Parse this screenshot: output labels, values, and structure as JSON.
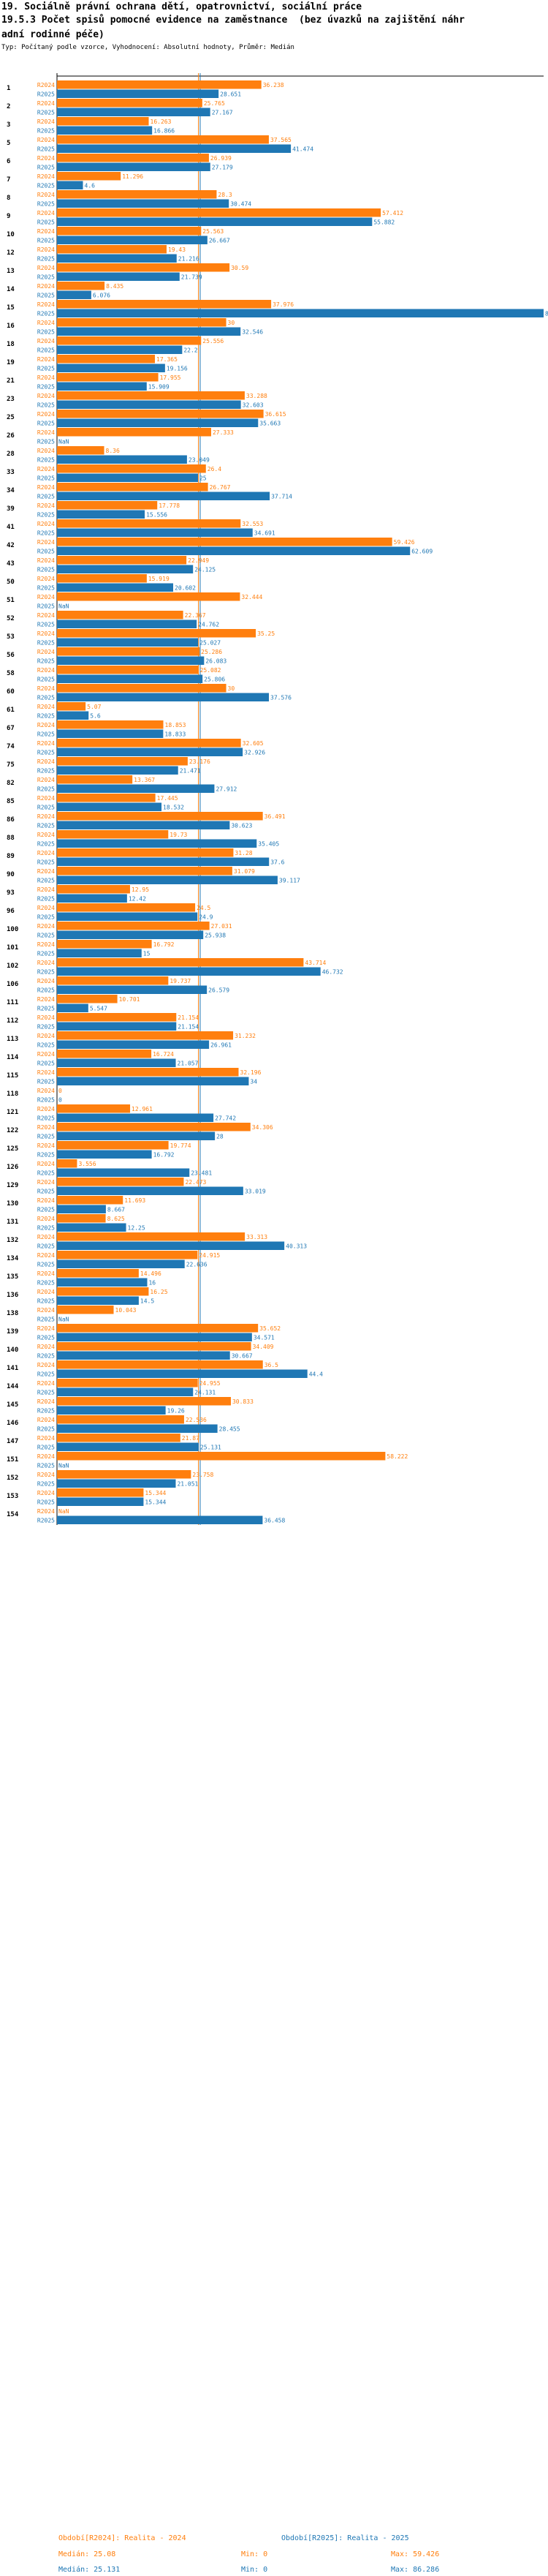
{
  "header": {
    "line1": "19. Sociálně právní ochrana dětí, opatrovnictví, sociální práce",
    "line2": "19.5.3 Počet spisů pomocné evidence na zaměstnance  (bez úvazků na zajištění náhr",
    "line3": "adní rodinné péče)",
    "line4": "Typ: Počítaný podle vzorce, Vyhodnocení: Absolutní hodnoty, Průměr: Medián"
  },
  "colors": {
    "orange": "#ff7f0e",
    "blue": "#1f77b4"
  },
  "chart_data": {
    "type": "bar",
    "orientation": "horizontal",
    "xlim": [
      0,
      86.286
    ],
    "series": [
      {
        "name": "R2024",
        "label": "R2024"
      },
      {
        "name": "R2025",
        "label": "R2025"
      }
    ],
    "groups": [
      {
        "id": "1",
        "v": [
          "36.238",
          "28.651"
        ]
      },
      {
        "id": "2",
        "v": [
          "25.765",
          "27.167"
        ]
      },
      {
        "id": "3",
        "v": [
          "16.263",
          "16.866"
        ]
      },
      {
        "id": "5",
        "v": [
          "37.565",
          "41.474"
        ]
      },
      {
        "id": "6",
        "v": [
          "26.939",
          "27.179"
        ]
      },
      {
        "id": "7",
        "v": [
          "11.296",
          "4.6"
        ]
      },
      {
        "id": "8",
        "v": [
          "28.3",
          "30.474"
        ]
      },
      {
        "id": "9",
        "v": [
          "57.412",
          "55.882"
        ]
      },
      {
        "id": "10",
        "v": [
          "25.563",
          "26.667"
        ]
      },
      {
        "id": "12",
        "v": [
          "19.43",
          "21.216"
        ]
      },
      {
        "id": "13",
        "v": [
          "30.59",
          "21.739"
        ]
      },
      {
        "id": "14",
        "v": [
          "8.435",
          "6.076"
        ]
      },
      {
        "id": "15",
        "v": [
          "37.976",
          "86.286"
        ]
      },
      {
        "id": "16",
        "v": [
          "30",
          "32.546"
        ]
      },
      {
        "id": "18",
        "v": [
          "25.556",
          "22.2"
        ]
      },
      {
        "id": "19",
        "v": [
          "17.365",
          "19.156"
        ]
      },
      {
        "id": "21",
        "v": [
          "17.955",
          "15.909"
        ]
      },
      {
        "id": "23",
        "v": [
          "33.288",
          "32.603"
        ]
      },
      {
        "id": "25",
        "v": [
          "36.615",
          "35.663"
        ]
      },
      {
        "id": "26",
        "v": [
          "27.333",
          "NaN"
        ]
      },
      {
        "id": "28",
        "v": [
          "8.36",
          "23.049"
        ]
      },
      {
        "id": "33",
        "v": [
          "26.4",
          "25"
        ]
      },
      {
        "id": "34",
        "v": [
          "26.767",
          "37.714"
        ]
      },
      {
        "id": "39",
        "v": [
          "17.778",
          "15.556"
        ]
      },
      {
        "id": "41",
        "v": [
          "32.553",
          "34.691"
        ]
      },
      {
        "id": "42",
        "v": [
          "59.426",
          "62.609"
        ]
      },
      {
        "id": "43",
        "v": [
          "22.949",
          "24.125"
        ]
      },
      {
        "id": "50",
        "v": [
          "15.919",
          "20.602"
        ]
      },
      {
        "id": "51",
        "v": [
          "32.444",
          "NaN"
        ]
      },
      {
        "id": "52",
        "v": [
          "22.367",
          "24.762"
        ]
      },
      {
        "id": "53",
        "v": [
          "35.25",
          "25.027"
        ]
      },
      {
        "id": "56",
        "v": [
          "25.286",
          "26.083"
        ]
      },
      {
        "id": "58",
        "v": [
          "25.082",
          "25.806"
        ]
      },
      {
        "id": "60",
        "v": [
          "30",
          "37.576"
        ]
      },
      {
        "id": "61",
        "v": [
          "5.07",
          "5.6"
        ]
      },
      {
        "id": "67",
        "v": [
          "18.853",
          "18.833"
        ]
      },
      {
        "id": "74",
        "v": [
          "32.605",
          "32.926"
        ]
      },
      {
        "id": "75",
        "v": [
          "23.176",
          "21.471"
        ]
      },
      {
        "id": "82",
        "v": [
          "13.367",
          "27.912"
        ]
      },
      {
        "id": "85",
        "v": [
          "17.445",
          "18.532"
        ]
      },
      {
        "id": "86",
        "v": [
          "36.491",
          "30.623"
        ]
      },
      {
        "id": "88",
        "v": [
          "19.73",
          "35.405"
        ]
      },
      {
        "id": "89",
        "v": [
          "31.28",
          "37.6"
        ]
      },
      {
        "id": "90",
        "v": [
          "31.079",
          "39.117"
        ]
      },
      {
        "id": "93",
        "v": [
          "12.95",
          "12.42"
        ]
      },
      {
        "id": "96",
        "v": [
          "24.5",
          "24.9"
        ]
      },
      {
        "id": "100",
        "v": [
          "27.031",
          "25.938"
        ]
      },
      {
        "id": "101",
        "v": [
          "16.792",
          "15"
        ]
      },
      {
        "id": "102",
        "v": [
          "43.714",
          "46.732"
        ]
      },
      {
        "id": "106",
        "v": [
          "19.737",
          "26.579"
        ]
      },
      {
        "id": "111",
        "v": [
          "10.701",
          "5.547"
        ]
      },
      {
        "id": "112",
        "v": [
          "21.154",
          "21.154"
        ]
      },
      {
        "id": "113",
        "v": [
          "31.232",
          "26.961"
        ]
      },
      {
        "id": "114",
        "v": [
          "16.724",
          "21.057"
        ]
      },
      {
        "id": "115",
        "v": [
          "32.196",
          "34"
        ]
      },
      {
        "id": "118",
        "v": [
          "0",
          "0"
        ]
      },
      {
        "id": "121",
        "v": [
          "12.961",
          "27.742"
        ]
      },
      {
        "id": "122",
        "v": [
          "34.306",
          "28"
        ]
      },
      {
        "id": "125",
        "v": [
          "19.774",
          "16.792"
        ]
      },
      {
        "id": "126",
        "v": [
          "3.556",
          "23.481"
        ]
      },
      {
        "id": "129",
        "v": [
          "22.473",
          "33.019"
        ]
      },
      {
        "id": "130",
        "v": [
          "11.693",
          "8.667"
        ]
      },
      {
        "id": "131",
        "v": [
          "8.625",
          "12.25"
        ]
      },
      {
        "id": "132",
        "v": [
          "33.313",
          "40.313"
        ]
      },
      {
        "id": "134",
        "v": [
          "24.915",
          "22.636"
        ]
      },
      {
        "id": "135",
        "v": [
          "14.496",
          "16"
        ]
      },
      {
        "id": "136",
        "v": [
          "16.25",
          "14.5"
        ]
      },
      {
        "id": "138",
        "v": [
          "10.043",
          "NaN"
        ]
      },
      {
        "id": "139",
        "v": [
          "35.652",
          "34.571"
        ]
      },
      {
        "id": "140",
        "v": [
          "34.409",
          "30.667"
        ]
      },
      {
        "id": "141",
        "v": [
          "36.5",
          "44.4"
        ]
      },
      {
        "id": "144",
        "v": [
          "24.955",
          "24.131"
        ]
      },
      {
        "id": "145",
        "v": [
          "30.833",
          "19.26"
        ]
      },
      {
        "id": "146",
        "v": [
          "22.536",
          "28.455"
        ]
      },
      {
        "id": "147",
        "v": [
          "21.87",
          "25.131"
        ]
      },
      {
        "id": "151",
        "v": [
          "58.222",
          "NaN"
        ]
      },
      {
        "id": "152",
        "v": [
          "23.758",
          "21.051"
        ]
      },
      {
        "id": "153",
        "v": [
          "15.344",
          "15.344"
        ]
      },
      {
        "id": "154",
        "v": [
          "NaN",
          "36.458"
        ]
      }
    ]
  },
  "footer": {
    "orange_title": "Období[R2024]: Realita - 2024",
    "blue_title": "Období[R2025]: Realita - 2025",
    "orange_median": "Medián: 25.08",
    "orange_min": "Min: 0",
    "orange_max": "Max: 59.426",
    "blue_median": "Medián: 25.131",
    "blue_min": "Min: 0",
    "blue_max": "Max: 86.286",
    "median_orange_value": 25.08,
    "median_blue_value": 25.131
  }
}
